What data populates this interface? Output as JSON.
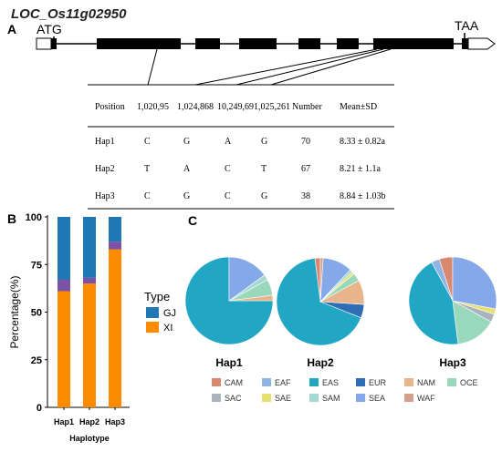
{
  "panelA": {
    "gene_name": "LOC_Os11g02950",
    "panel_label": "A",
    "start_codon": "ATG",
    "stop_codon": "TAA",
    "table": {
      "headers": [
        "Position",
        "1,020,95",
        "1,024,868",
        "10,249,69",
        "1,025,261",
        "Number",
        "Mean±SD"
      ],
      "rows": [
        [
          "Hap1",
          "C",
          "G",
          "A",
          "G",
          "70",
          "8.33 ± 0.82a"
        ],
        [
          "Hap2",
          "T",
          "A",
          "C",
          "T",
          "67",
          "8.21 ± 1.1a"
        ],
        [
          "Hap3",
          "C",
          "G",
          "C",
          "G",
          "38",
          "8.84 ± 1.03b"
        ]
      ]
    }
  },
  "panelB": {
    "panel_label": "B",
    "legend_title": "Type",
    "colors": {
      "GJ": "#1f78b4",
      "XI": "#ff8c00",
      "other": "#7b52a8"
    }
  },
  "panelC": {
    "panel_label": "C",
    "pie_labels": [
      "Hap1",
      "Hap2",
      "Hap3"
    ]
  },
  "chart_data": [
    {
      "type": "bar",
      "stacked": true,
      "categories": [
        "Hap1",
        "Hap2",
        "Hap3"
      ],
      "series": [
        {
          "name": "XI",
          "color": "#ff8c00",
          "values": [
            61,
            65,
            83
          ]
        },
        {
          "name": "",
          "color": "#7b52a8",
          "values": [
            6,
            3,
            4
          ]
        },
        {
          "name": "GJ",
          "color": "#1f78b4",
          "values": [
            33,
            32,
            13
          ]
        }
      ],
      "xlabel": "Haplotype",
      "ylabel": "Percentage(%)",
      "ylim": [
        0,
        100
      ],
      "yticks": [
        0,
        25,
        50,
        75,
        100
      ],
      "legend": "right"
    },
    {
      "type": "pie",
      "categories": [
        "CAM",
        "EAF",
        "EAS",
        "EUR",
        "NAM",
        "OCE",
        "SAC",
        "SAE",
        "SAM",
        "SEA",
        "WAF"
      ],
      "colors": [
        "#d98870",
        "#8fb4e3",
        "#21a6c4",
        "#2f6db5",
        "#e8b48b",
        "#9ad8bb",
        "#aab4bf",
        "#e8e06e",
        "#a3d8d3",
        "#85a8e8",
        "#d4a08e"
      ],
      "pies": [
        {
          "label": "Hap1",
          "values": {
            "CAM": 0,
            "EAF": 0,
            "EAS": 75,
            "EUR": 0,
            "NAM": 2,
            "OCE": 6,
            "SAC": 0,
            "SAE": 0,
            "SAM": 2,
            "SEA": 15,
            "WAF": 0
          }
        },
        {
          "label": "Hap2",
          "values": {
            "CAM": 2,
            "EAF": 0,
            "EAS": 67,
            "EUR": 5,
            "NAM": 9,
            "OCE": 3,
            "SAC": 0,
            "SAE": 1,
            "SAM": 1,
            "SEA": 11,
            "WAF": 1
          }
        },
        {
          "label": "Hap3",
          "values": {
            "CAM": 5,
            "EAF": 3,
            "EAS": 44,
            "EUR": 0,
            "NAM": 0,
            "OCE": 15,
            "SAC": 3,
            "SAE": 2,
            "SAM": 0,
            "SEA": 28,
            "WAF": 0
          }
        }
      ],
      "legend": "bottom"
    }
  ]
}
